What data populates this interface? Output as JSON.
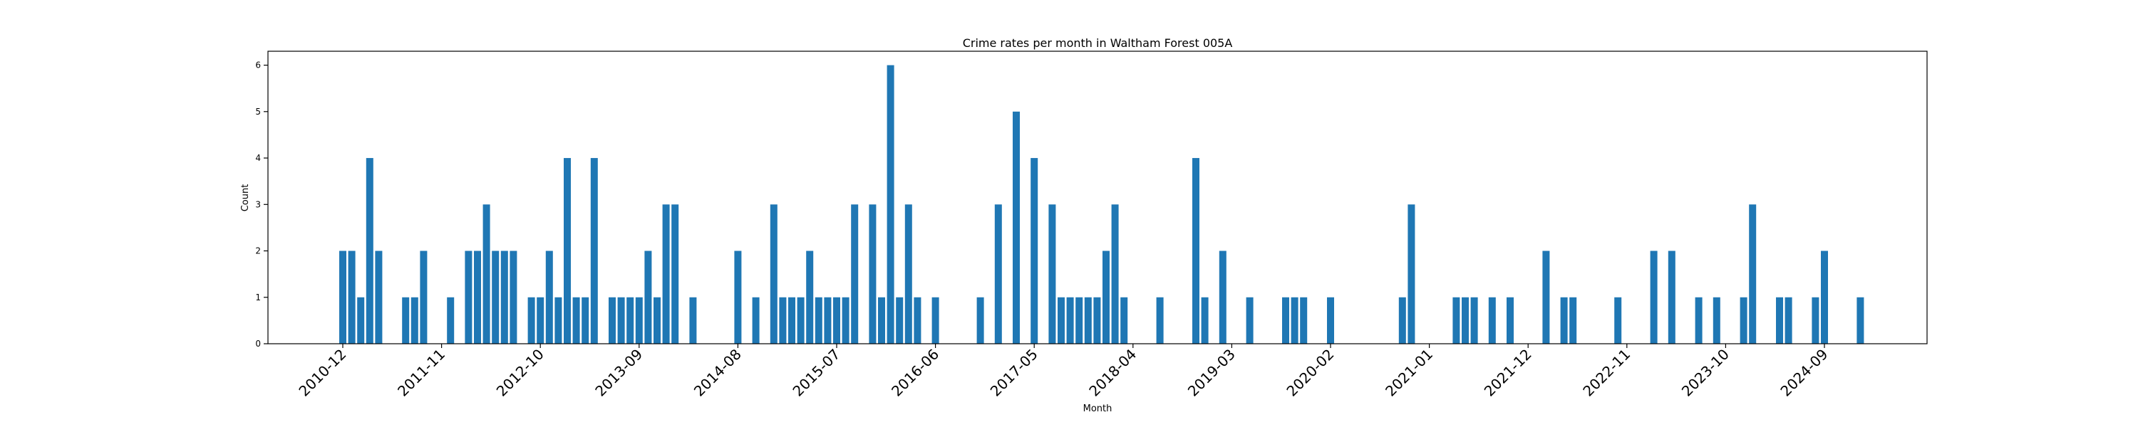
{
  "chart_data": {
    "type": "bar",
    "title": "Crime rates per month in Waltham Forest 005A",
    "xlabel": "Month",
    "ylabel": "Count",
    "ylim": [
      0,
      6.3
    ],
    "yticks": [
      0,
      1,
      2,
      3,
      4,
      5,
      6
    ],
    "grid": false,
    "color": "#1f77b4",
    "x_start": "2010-12",
    "xtick_labels": [
      "2010-12",
      "2011-11",
      "2012-10",
      "2013-09",
      "2014-08",
      "2015-07",
      "2016-06",
      "2017-05",
      "2018-04",
      "2019-03",
      "2020-02",
      "2021-01",
      "2021-12",
      "2022-11",
      "2023-10",
      "2024-09"
    ],
    "points": [
      {
        "x": "2010-12",
        "y": 2
      },
      {
        "x": "2011-01",
        "y": 2
      },
      {
        "x": "2011-02",
        "y": 1
      },
      {
        "x": "2011-03",
        "y": 4
      },
      {
        "x": "2011-04",
        "y": 2
      },
      {
        "x": "2011-07",
        "y": 1
      },
      {
        "x": "2011-08",
        "y": 1
      },
      {
        "x": "2011-09",
        "y": 2
      },
      {
        "x": "2011-12",
        "y": 1
      },
      {
        "x": "2012-02",
        "y": 2
      },
      {
        "x": "2012-03",
        "y": 2
      },
      {
        "x": "2012-04",
        "y": 3
      },
      {
        "x": "2012-05",
        "y": 2
      },
      {
        "x": "2012-06",
        "y": 2
      },
      {
        "x": "2012-07",
        "y": 2
      },
      {
        "x": "2012-09",
        "y": 1
      },
      {
        "x": "2012-10",
        "y": 1
      },
      {
        "x": "2012-11",
        "y": 2
      },
      {
        "x": "2012-12",
        "y": 1
      },
      {
        "x": "2013-01",
        "y": 4
      },
      {
        "x": "2013-02",
        "y": 1
      },
      {
        "x": "2013-03",
        "y": 1
      },
      {
        "x": "2013-04",
        "y": 4
      },
      {
        "x": "2013-06",
        "y": 1
      },
      {
        "x": "2013-07",
        "y": 1
      },
      {
        "x": "2013-08",
        "y": 1
      },
      {
        "x": "2013-09",
        "y": 1
      },
      {
        "x": "2013-10",
        "y": 2
      },
      {
        "x": "2013-11",
        "y": 1
      },
      {
        "x": "2013-12",
        "y": 3
      },
      {
        "x": "2014-01",
        "y": 3
      },
      {
        "x": "2014-03",
        "y": 1
      },
      {
        "x": "2014-08",
        "y": 2
      },
      {
        "x": "2014-10",
        "y": 1
      },
      {
        "x": "2014-12",
        "y": 3
      },
      {
        "x": "2015-01",
        "y": 1
      },
      {
        "x": "2015-02",
        "y": 1
      },
      {
        "x": "2015-03",
        "y": 1
      },
      {
        "x": "2015-04",
        "y": 2
      },
      {
        "x": "2015-05",
        "y": 1
      },
      {
        "x": "2015-06",
        "y": 1
      },
      {
        "x": "2015-07",
        "y": 1
      },
      {
        "x": "2015-08",
        "y": 1
      },
      {
        "x": "2015-09",
        "y": 3
      },
      {
        "x": "2015-11",
        "y": 3
      },
      {
        "x": "2015-12",
        "y": 1
      },
      {
        "x": "2016-01",
        "y": 6
      },
      {
        "x": "2016-02",
        "y": 1
      },
      {
        "x": "2016-03",
        "y": 3
      },
      {
        "x": "2016-04",
        "y": 1
      },
      {
        "x": "2016-06",
        "y": 1
      },
      {
        "x": "2016-11",
        "y": 1
      },
      {
        "x": "2017-01",
        "y": 3
      },
      {
        "x": "2017-03",
        "y": 5
      },
      {
        "x": "2017-05",
        "y": 4
      },
      {
        "x": "2017-07",
        "y": 3
      },
      {
        "x": "2017-08",
        "y": 1
      },
      {
        "x": "2017-09",
        "y": 1
      },
      {
        "x": "2017-10",
        "y": 1
      },
      {
        "x": "2017-11",
        "y": 1
      },
      {
        "x": "2017-12",
        "y": 1
      },
      {
        "x": "2018-01",
        "y": 2
      },
      {
        "x": "2018-02",
        "y": 3
      },
      {
        "x": "2018-03",
        "y": 1
      },
      {
        "x": "2018-07",
        "y": 1
      },
      {
        "x": "2018-11",
        "y": 4
      },
      {
        "x": "2018-12",
        "y": 1
      },
      {
        "x": "2019-02",
        "y": 2
      },
      {
        "x": "2019-05",
        "y": 1
      },
      {
        "x": "2019-09",
        "y": 1
      },
      {
        "x": "2019-10",
        "y": 1
      },
      {
        "x": "2019-11",
        "y": 1
      },
      {
        "x": "2020-02",
        "y": 1
      },
      {
        "x": "2020-10",
        "y": 1
      },
      {
        "x": "2020-11",
        "y": 3
      },
      {
        "x": "2021-04",
        "y": 1
      },
      {
        "x": "2021-05",
        "y": 1
      },
      {
        "x": "2021-06",
        "y": 1
      },
      {
        "x": "2021-08",
        "y": 1
      },
      {
        "x": "2021-10",
        "y": 1
      },
      {
        "x": "2022-02",
        "y": 2
      },
      {
        "x": "2022-04",
        "y": 1
      },
      {
        "x": "2022-05",
        "y": 1
      },
      {
        "x": "2022-10",
        "y": 1
      },
      {
        "x": "2023-02",
        "y": 2
      },
      {
        "x": "2023-04",
        "y": 2
      },
      {
        "x": "2023-07",
        "y": 1
      },
      {
        "x": "2023-09",
        "y": 1
      },
      {
        "x": "2023-12",
        "y": 1
      },
      {
        "x": "2024-01",
        "y": 3
      },
      {
        "x": "2024-04",
        "y": 1
      },
      {
        "x": "2024-05",
        "y": 1
      },
      {
        "x": "2024-08",
        "y": 1
      },
      {
        "x": "2024-09",
        "y": 2
      },
      {
        "x": "2025-01",
        "y": 1
      }
    ]
  }
}
